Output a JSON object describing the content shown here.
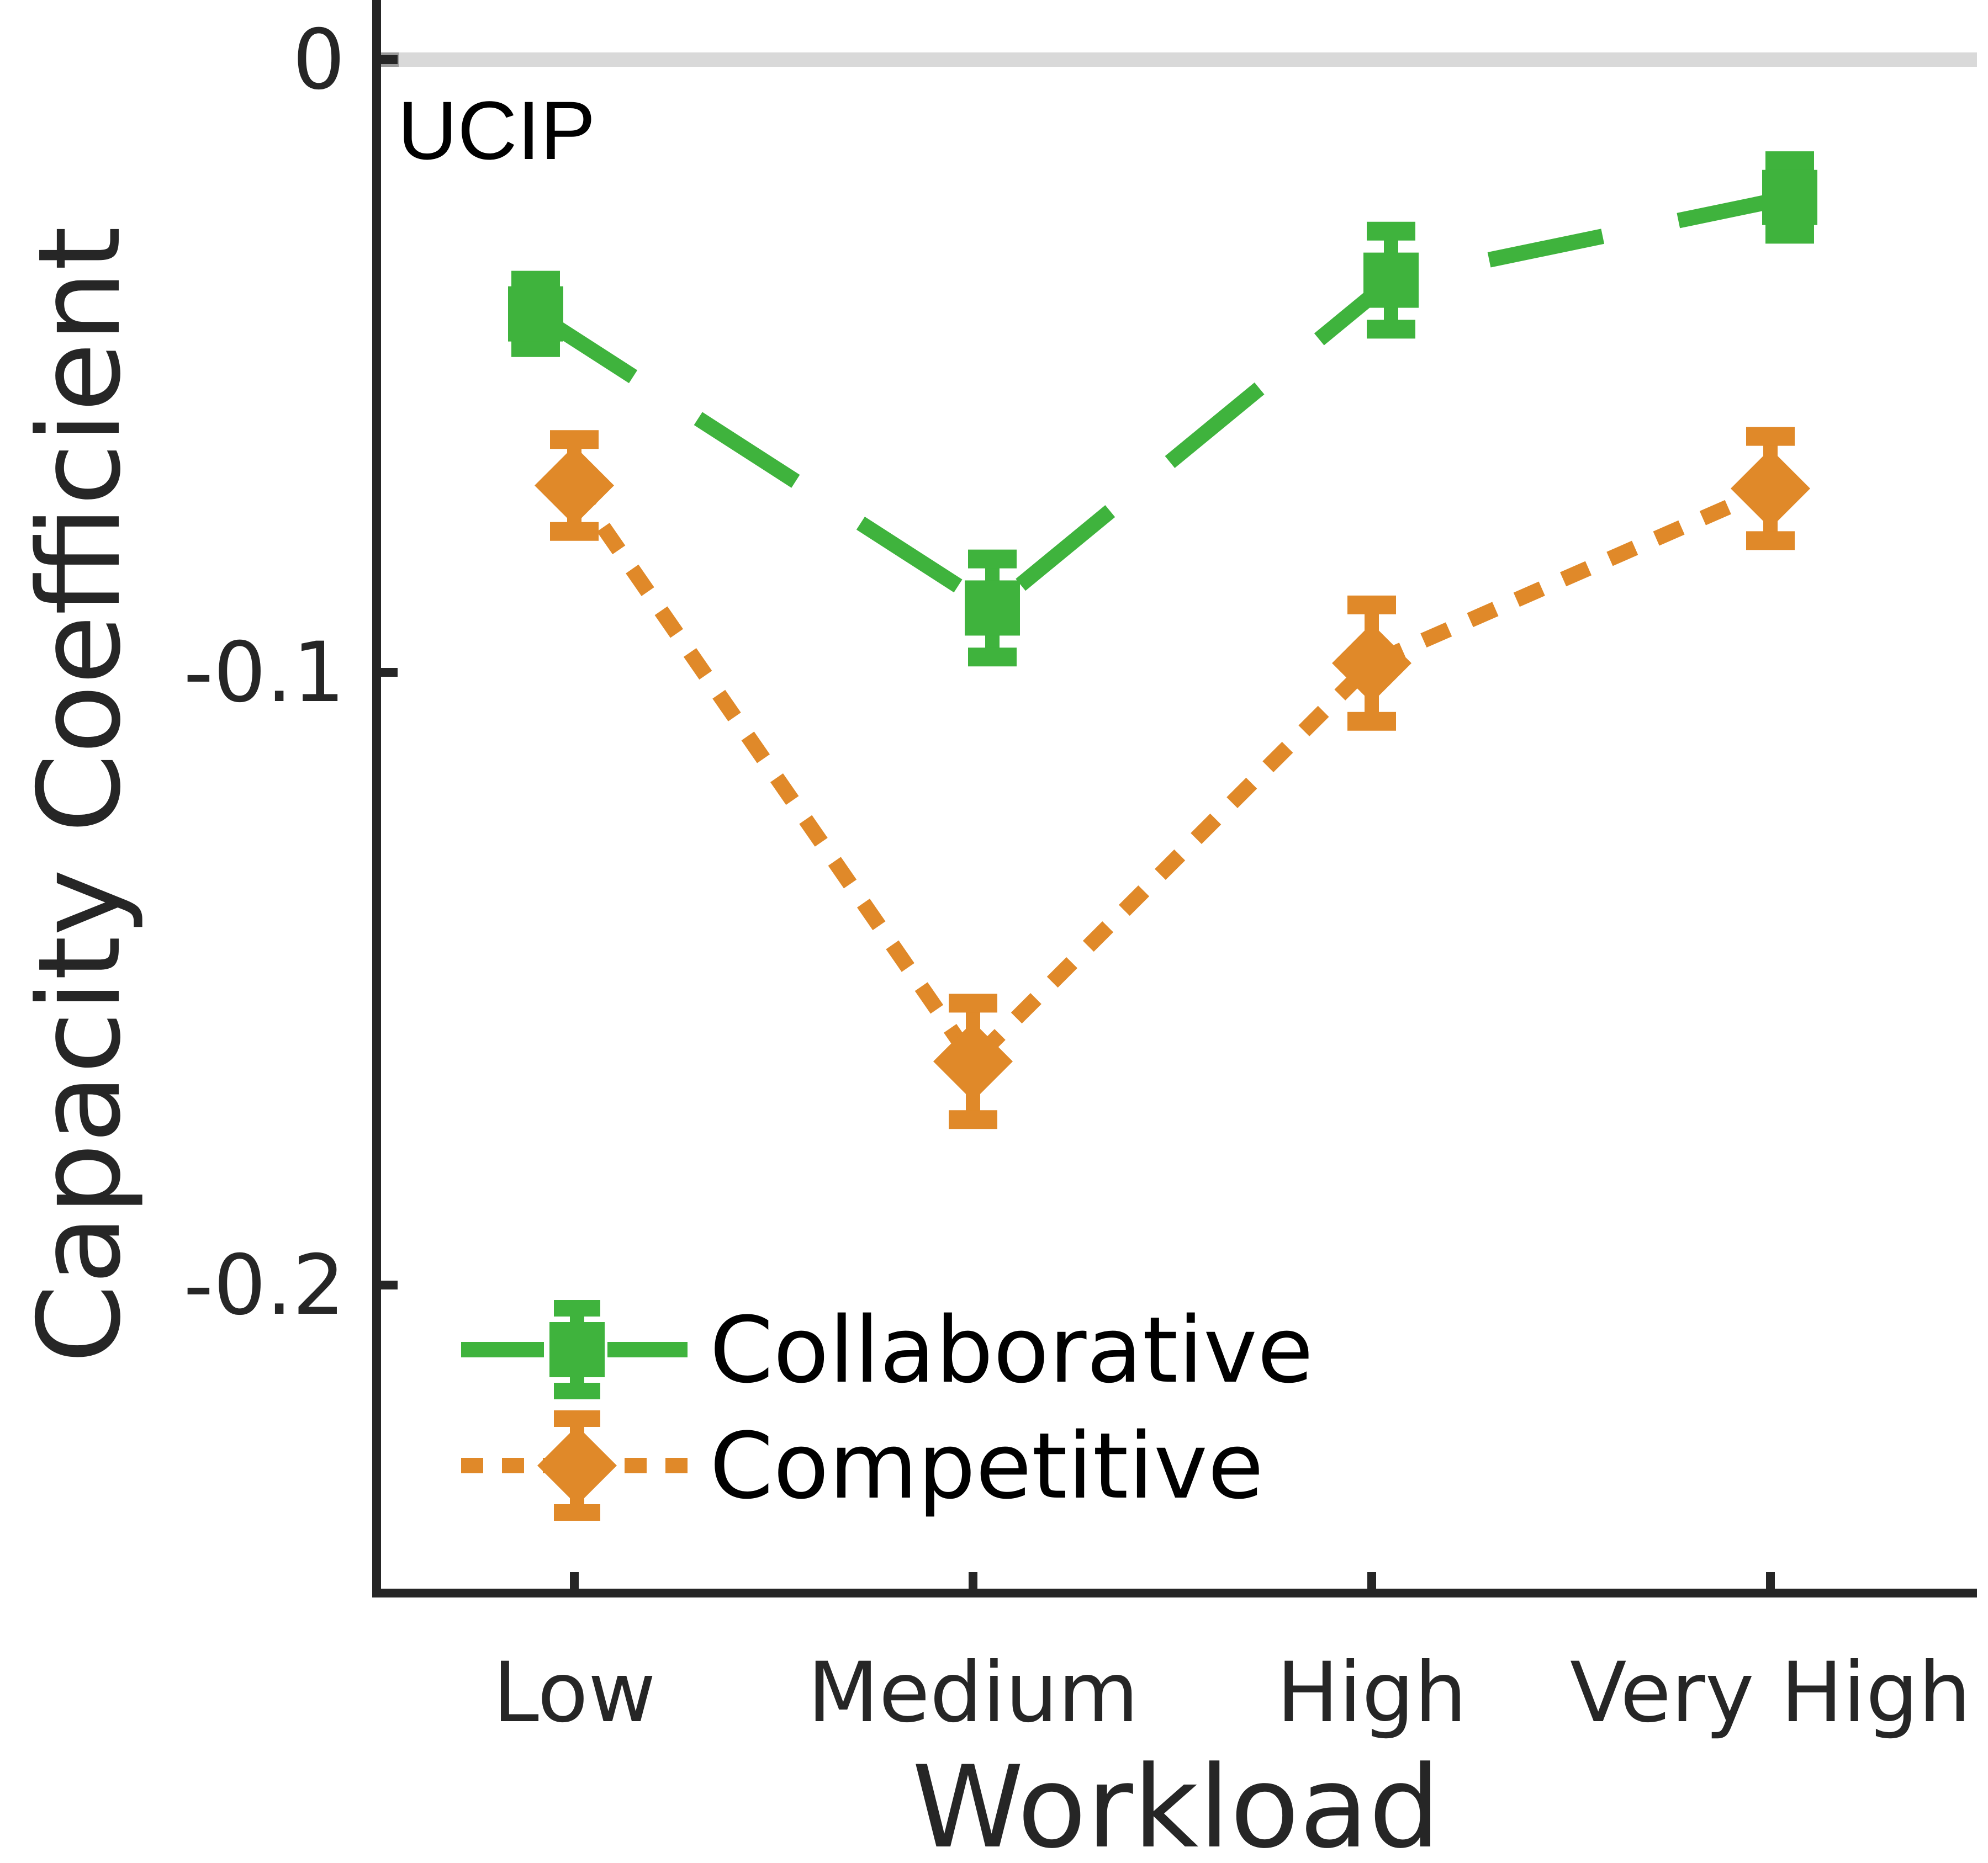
{
  "chart_data": {
    "type": "line",
    "title": "",
    "xlabel": "Workload",
    "ylabel": "Capacity Coefficient",
    "categories": [
      "Low",
      "Medium",
      "High",
      "Very High"
    ],
    "ylim": [
      -0.25,
      0.0
    ],
    "yticks": [
      {
        "value": 0,
        "label": "0"
      },
      {
        "value": -0.1,
        "label": "-0.1"
      },
      {
        "value": -0.2,
        "label": "-0.2"
      }
    ],
    "reference_line": {
      "value": 0,
      "label": "UCIP",
      "color": "#d9d9d9"
    },
    "grid": false,
    "legend": {
      "placement": "bottom-left"
    },
    "series": [
      {
        "name": "Collaborative",
        "color": "#3fb33d",
        "line_style": "dashed",
        "marker": "square",
        "values": [
          -0.0415,
          -0.0895,
          -0.036,
          -0.0225
        ],
        "errors": [
          0.0055,
          0.008,
          0.008,
          0.006
        ]
      },
      {
        "name": "Competitive",
        "color": "#e08929",
        "line_style": "dotted",
        "marker": "diamond",
        "values": [
          -0.0695,
          -0.1635,
          -0.0985,
          -0.07
        ],
        "errors": [
          0.0075,
          0.0095,
          0.0095,
          0.0085
        ]
      }
    ]
  }
}
